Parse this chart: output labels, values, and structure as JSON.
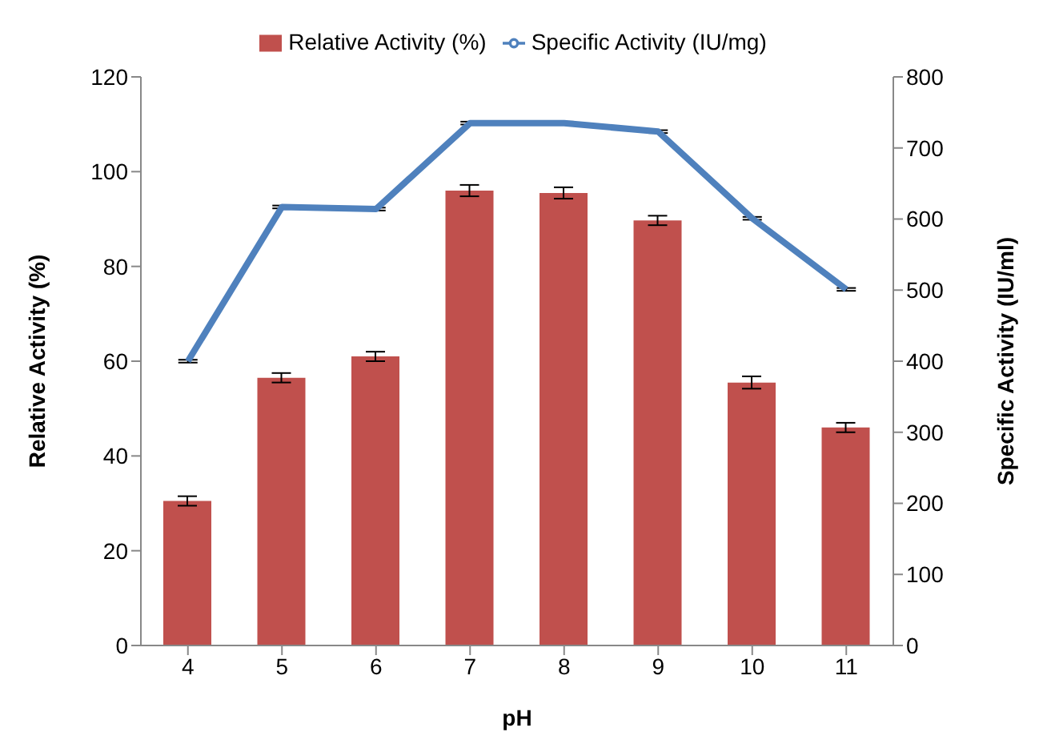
{
  "chart_data": {
    "type": "bar",
    "xlabel": "pH",
    "ylabel": "Relative Activity (%)",
    "y2label": "Specific Activity (IU/ml)",
    "categories": [
      "4",
      "5",
      "6",
      "7",
      "8",
      "9",
      "10",
      "11"
    ],
    "series": [
      {
        "name": "Relative Activity (%)",
        "color": "#c0504d",
        "values": [
          30.5,
          56.5,
          61,
          96,
          95.5,
          89.7,
          55.5,
          46
        ],
        "errors": [
          1,
          1,
          1,
          1.2,
          1.2,
          1,
          1.3,
          1
        ]
      },
      {
        "name": "Specific Activity (IU/mg)",
        "type": "line",
        "axis": "y2",
        "color": "#4f81bd",
        "values": [
          400,
          617,
          614,
          735,
          735,
          723,
          601,
          501
        ],
        "errors": [
          2,
          2,
          2,
          2,
          2,
          2,
          2,
          2
        ]
      }
    ],
    "ylim": [
      0,
      120
    ],
    "yticks": [
      0,
      20,
      40,
      60,
      80,
      100,
      120
    ],
    "y2lim": [
      0,
      800
    ],
    "y2ticks": [
      0,
      100,
      200,
      300,
      400,
      500,
      600,
      700,
      800
    ],
    "legend": "top",
    "marker": "none"
  }
}
